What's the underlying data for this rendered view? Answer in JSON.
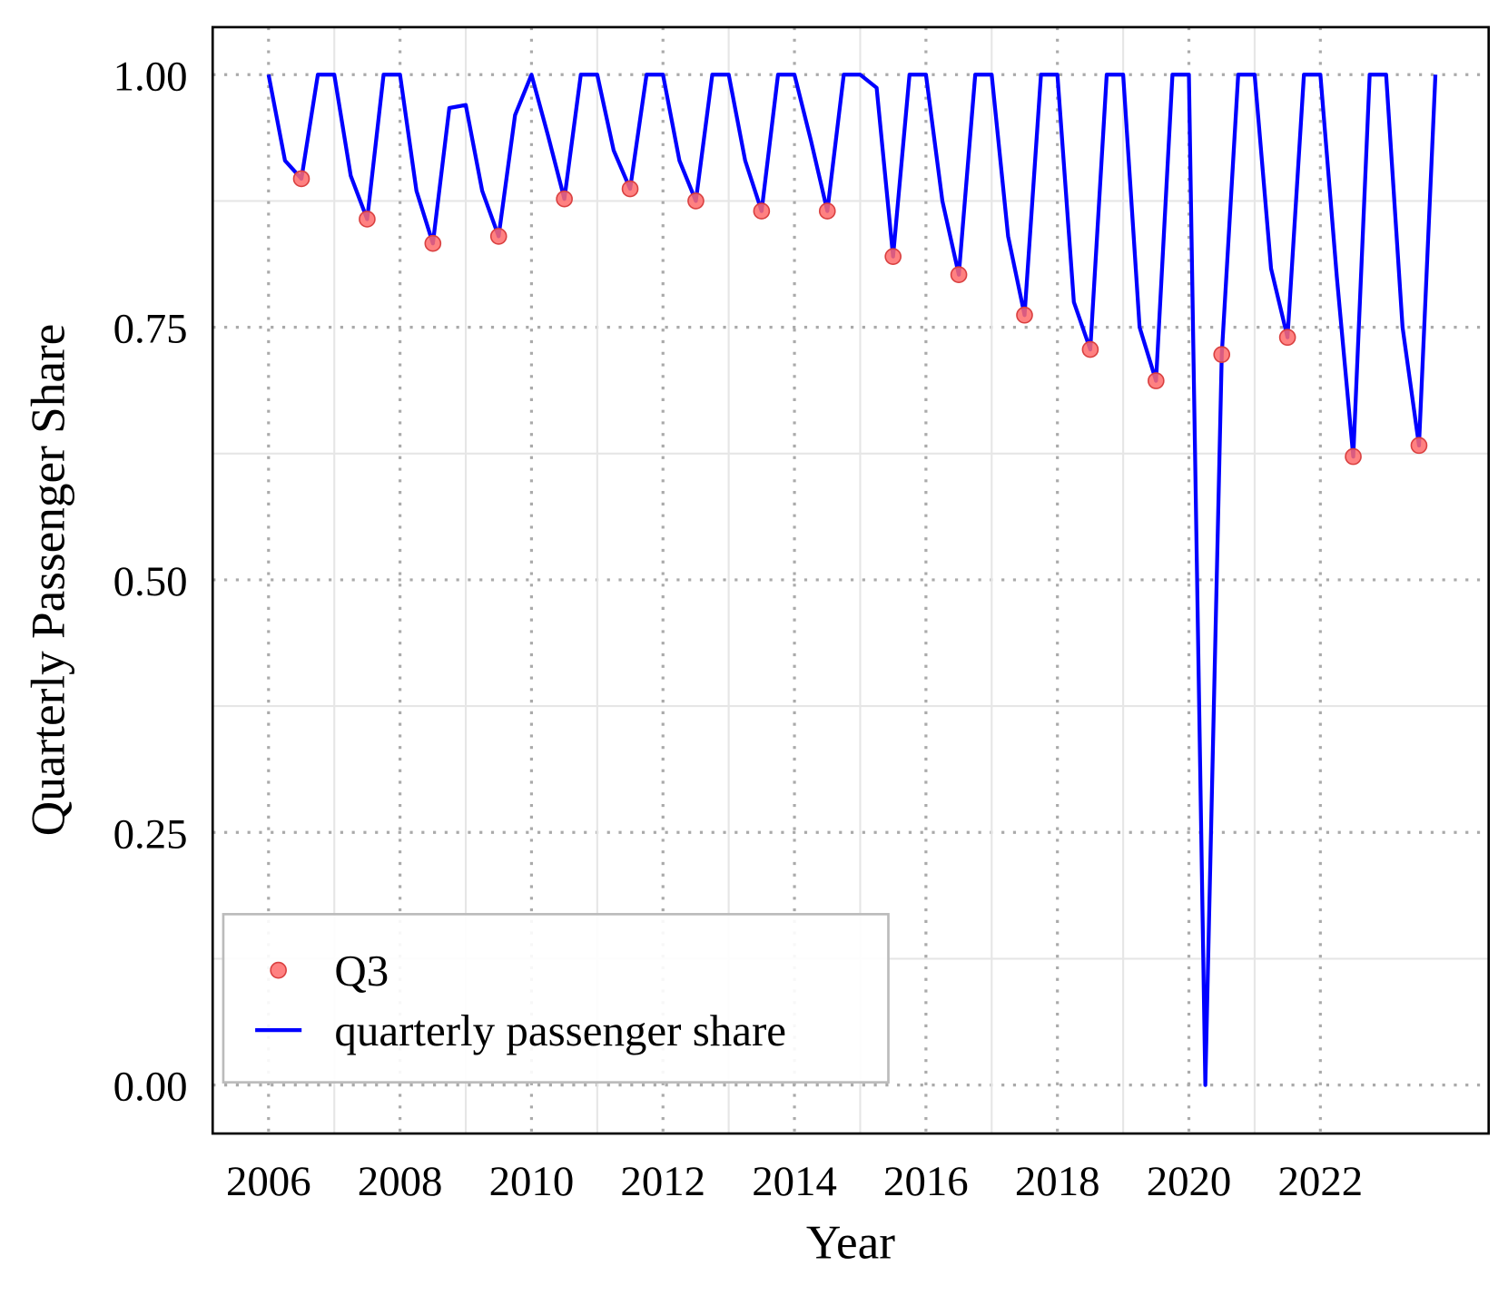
{
  "chart_data": {
    "type": "line",
    "xlabel": "Year",
    "ylabel": "Quarterly Passenger Share",
    "xlim": [
      2005.15,
      2024.56
    ],
    "ylim": [
      -0.048,
      1.047
    ],
    "xticks": [
      2006,
      2008,
      2010,
      2012,
      2014,
      2016,
      2018,
      2020,
      2022
    ],
    "yticks": [
      {
        "value": 0,
        "label": "0.00"
      },
      {
        "value": 0.25,
        "label": "0.25"
      },
      {
        "value": 0.5,
        "label": "0.50"
      },
      {
        "value": 0.75,
        "label": "0.75"
      },
      {
        "value": 1,
        "label": "1.00"
      }
    ],
    "grid": true,
    "legend": "lower left",
    "series": [
      {
        "name": "Q3",
        "type": "scatter",
        "color": "#ff6b6b",
        "x": [
          2006.5,
          2007.5,
          2008.5,
          2009.5,
          2010.5,
          2011.5,
          2012.5,
          2013.5,
          2014.5,
          2015.5,
          2016.5,
          2017.5,
          2018.5,
          2019.5,
          2020.5,
          2021.5,
          2022.5,
          2023.5
        ],
        "values": [
          0.897,
          0.857,
          0.833,
          0.84,
          0.877,
          0.887,
          0.875,
          0.865,
          0.865,
          0.82,
          0.802,
          0.762,
          0.728,
          0.697,
          0.723,
          0.74,
          0.622,
          0.633
        ]
      },
      {
        "name": "quarterly passenger share",
        "type": "line",
        "color": "#0000ff",
        "x": [
          2006,
          2006.25,
          2006.5,
          2006.75,
          2007,
          2007.25,
          2007.5,
          2007.75,
          2008,
          2008.25,
          2008.5,
          2008.75,
          2009,
          2009.25,
          2009.5,
          2009.75,
          2010,
          2010.25,
          2010.5,
          2010.75,
          2011,
          2011.25,
          2011.5,
          2011.75,
          2012,
          2012.25,
          2012.5,
          2012.75,
          2013,
          2013.25,
          2013.5,
          2013.75,
          2014,
          2014.25,
          2014.5,
          2014.75,
          2015,
          2015.25,
          2015.5,
          2015.75,
          2016,
          2016.25,
          2016.5,
          2016.75,
          2017,
          2017.25,
          2017.5,
          2017.75,
          2018,
          2018.25,
          2018.5,
          2018.75,
          2019,
          2019.25,
          2019.5,
          2019.75,
          2020,
          2020.25,
          2020.5,
          2020.75,
          2021,
          2021.25,
          2021.5,
          2021.75,
          2022,
          2022.25,
          2022.5,
          2022.75,
          2023,
          2023.25,
          2023.5,
          2023.75
        ],
        "values": [
          1.0,
          0.915,
          0.897,
          1.0,
          1.0,
          0.9,
          0.857,
          1.0,
          1.0,
          0.885,
          0.833,
          0.967,
          0.97,
          0.885,
          0.84,
          0.96,
          1.0,
          0.94,
          0.877,
          1.0,
          1.0,
          0.925,
          0.887,
          1.0,
          1.0,
          0.915,
          0.875,
          1.0,
          1.0,
          0.915,
          0.865,
          1.0,
          1.0,
          0.935,
          0.865,
          1.0,
          1.0,
          0.987,
          0.82,
          1.0,
          1.0,
          0.875,
          0.802,
          1.0,
          1.0,
          0.84,
          0.762,
          1.0,
          1.0,
          0.775,
          0.728,
          1.0,
          1.0,
          0.75,
          0.697,
          1.0,
          1.0,
          0.0,
          0.723,
          1.0,
          1.0,
          0.808,
          0.74,
          1.0,
          1.0,
          0.8,
          0.622,
          1.0,
          1.0,
          0.75,
          0.633,
          1.0
        ]
      }
    ]
  }
}
